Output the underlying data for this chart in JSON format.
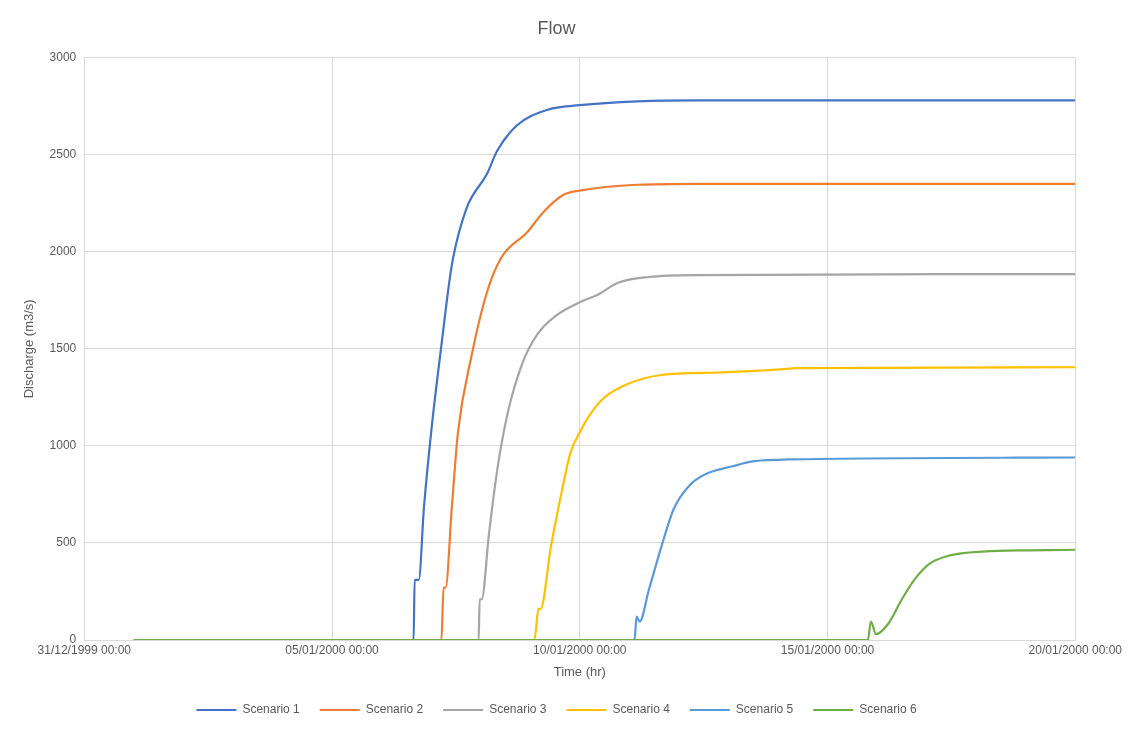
{
  "chart_data": {
    "type": "line",
    "title": "Flow",
    "xlabel": "Time (hr)",
    "ylabel": "Discharge (m3/s)",
    "xlim": [
      "1999-12-31T00:00",
      "2000-01-20T00:00"
    ],
    "xticks": [
      {
        "value": "1999-12-31T00:00",
        "label": "31/12/1999 00:00"
      },
      {
        "value": "2000-01-05T00:00",
        "label": "05/01/2000 00:00"
      },
      {
        "value": "2000-01-10T00:00",
        "label": "10/01/2000 00:00"
      },
      {
        "value": "2000-01-15T00:00",
        "label": "15/01/2000 00:00"
      },
      {
        "value": "2000-01-20T00:00",
        "label": "20/01/2000 00:00"
      }
    ],
    "ylim": [
      0,
      3000
    ],
    "yticks": [
      0,
      500,
      1000,
      1500,
      2000,
      2500,
      3000
    ],
    "grid": true,
    "legend": "bottom",
    "marker": "none",
    "line_style": "solid",
    "series": [
      {
        "name": "Scenario 1",
        "color": "#4472c4",
        "x": [
          "2000-01-01T00:00",
          "2000-01-06T15:30",
          "2000-01-06T16:00",
          "2000-01-06T18:00",
          "2000-01-06T20:30",
          "2000-01-07T00:00",
          "2000-01-07T05:00",
          "2000-01-07T10:00",
          "2000-01-07T17:00",
          "2000-01-08T03:00",
          "2000-01-08T08:00",
          "2000-01-08T17:30",
          "2000-01-09T08:00",
          "2000-01-10T00:00",
          "2000-01-11T04:00",
          "2000-01-12T10:00",
          "2000-01-20T00:00"
        ],
        "values": [
          0,
          0,
          310,
          310,
          680,
          1070,
          1520,
          1930,
          2220,
          2400,
          2520,
          2650,
          2730,
          2755,
          2775,
          2780,
          2780
        ]
      },
      {
        "name": "Scenario 2",
        "color": "#ed7d31",
        "x": [
          "2000-01-01T00:00",
          "2000-01-07T05:00",
          "2000-01-07T06:00",
          "2000-01-07T07:00",
          "2000-01-07T10:00",
          "2000-01-07T13:00",
          "2000-01-07T19:30",
          "2000-01-08T03:00",
          "2000-01-08T10:00",
          "2000-01-08T22:30",
          "2000-01-09T06:00",
          "2000-01-09T15:30",
          "2000-01-10T00:00",
          "2000-01-11T04:00",
          "2000-01-12T10:00",
          "2000-01-20T00:00"
        ],
        "values": [
          0,
          0,
          270,
          270,
          680,
          1070,
          1460,
          1790,
          1970,
          2100,
          2200,
          2290,
          2315,
          2345,
          2350,
          2350
        ]
      },
      {
        "name": "Scenario 3",
        "color": "#a5a5a5",
        "x": [
          "2000-01-01T00:00",
          "2000-01-07T23:00",
          "2000-01-07T23:30",
          "2000-01-08T00:30",
          "2000-01-08T04:00",
          "2000-01-08T08:00",
          "2000-01-08T13:00",
          "2000-01-08T20:00",
          "2000-01-09T03:30",
          "2000-01-09T13:00",
          "2000-01-10T00:00",
          "2000-01-10T09:00",
          "2000-01-10T18:30",
          "2000-01-11T09:30",
          "2000-01-12T10:00",
          "2000-01-20T00:00"
        ],
        "values": [
          0,
          0,
          210,
          210,
          545,
          875,
          1165,
          1420,
          1575,
          1675,
          1740,
          1780,
          1840,
          1870,
          1880,
          1885
        ]
      },
      {
        "name": "Scenario 4",
        "color": "#ffc000",
        "x": [
          "2000-01-01T00:00",
          "2000-01-09T02:00",
          "2000-01-09T04:00",
          "2000-01-09T05:00",
          "2000-01-09T10:00",
          "2000-01-09T14:30",
          "2000-01-09T19:30",
          "2000-01-10T00:00",
          "2000-01-10T05:30",
          "2000-01-10T12:00",
          "2000-01-10T23:30",
          "2000-01-11T15:30",
          "2000-01-12T19:30",
          "2000-01-13T19:00",
          "2000-01-14T11:00",
          "2000-01-20T00:00"
        ],
        "values": [
          0,
          0,
          160,
          160,
          480,
          725,
          965,
          1070,
          1170,
          1250,
          1320,
          1365,
          1378,
          1390,
          1400,
          1405
        ]
      },
      {
        "name": "Scenario 5",
        "color": "#5b9bd5",
        "x": [
          "2000-01-01T00:00",
          "2000-01-11T02:30",
          "2000-01-11T03:30",
          "2000-01-11T05:00",
          "2000-01-11T09:30",
          "2000-01-11T15:30",
          "2000-01-11T21:30",
          "2000-01-12T05:00",
          "2000-01-12T13:00",
          "2000-01-13T02:00",
          "2000-01-13T11:45",
          "2000-01-14T04:30",
          "2000-01-20T00:00"
        ],
        "values": [
          0,
          0,
          120,
          95,
          260,
          480,
          675,
          795,
          855,
          895,
          920,
          930,
          940
        ]
      },
      {
        "name": "Scenario 6",
        "color": "#70ad47",
        "x": [
          "2000-01-01T00:00",
          "2000-01-15T19:30",
          "2000-01-15T21:00",
          "2000-01-15T23:30",
          "2000-01-16T05:30",
          "2000-01-16T11:45",
          "2000-01-16T18:00",
          "2000-01-17T01:00",
          "2000-01-17T11:00",
          "2000-01-18T03:00",
          "2000-01-20T00:00"
        ],
        "values": [
          0,
          0,
          95,
          30,
          85,
          205,
          310,
          390,
          435,
          455,
          465
        ]
      }
    ]
  }
}
